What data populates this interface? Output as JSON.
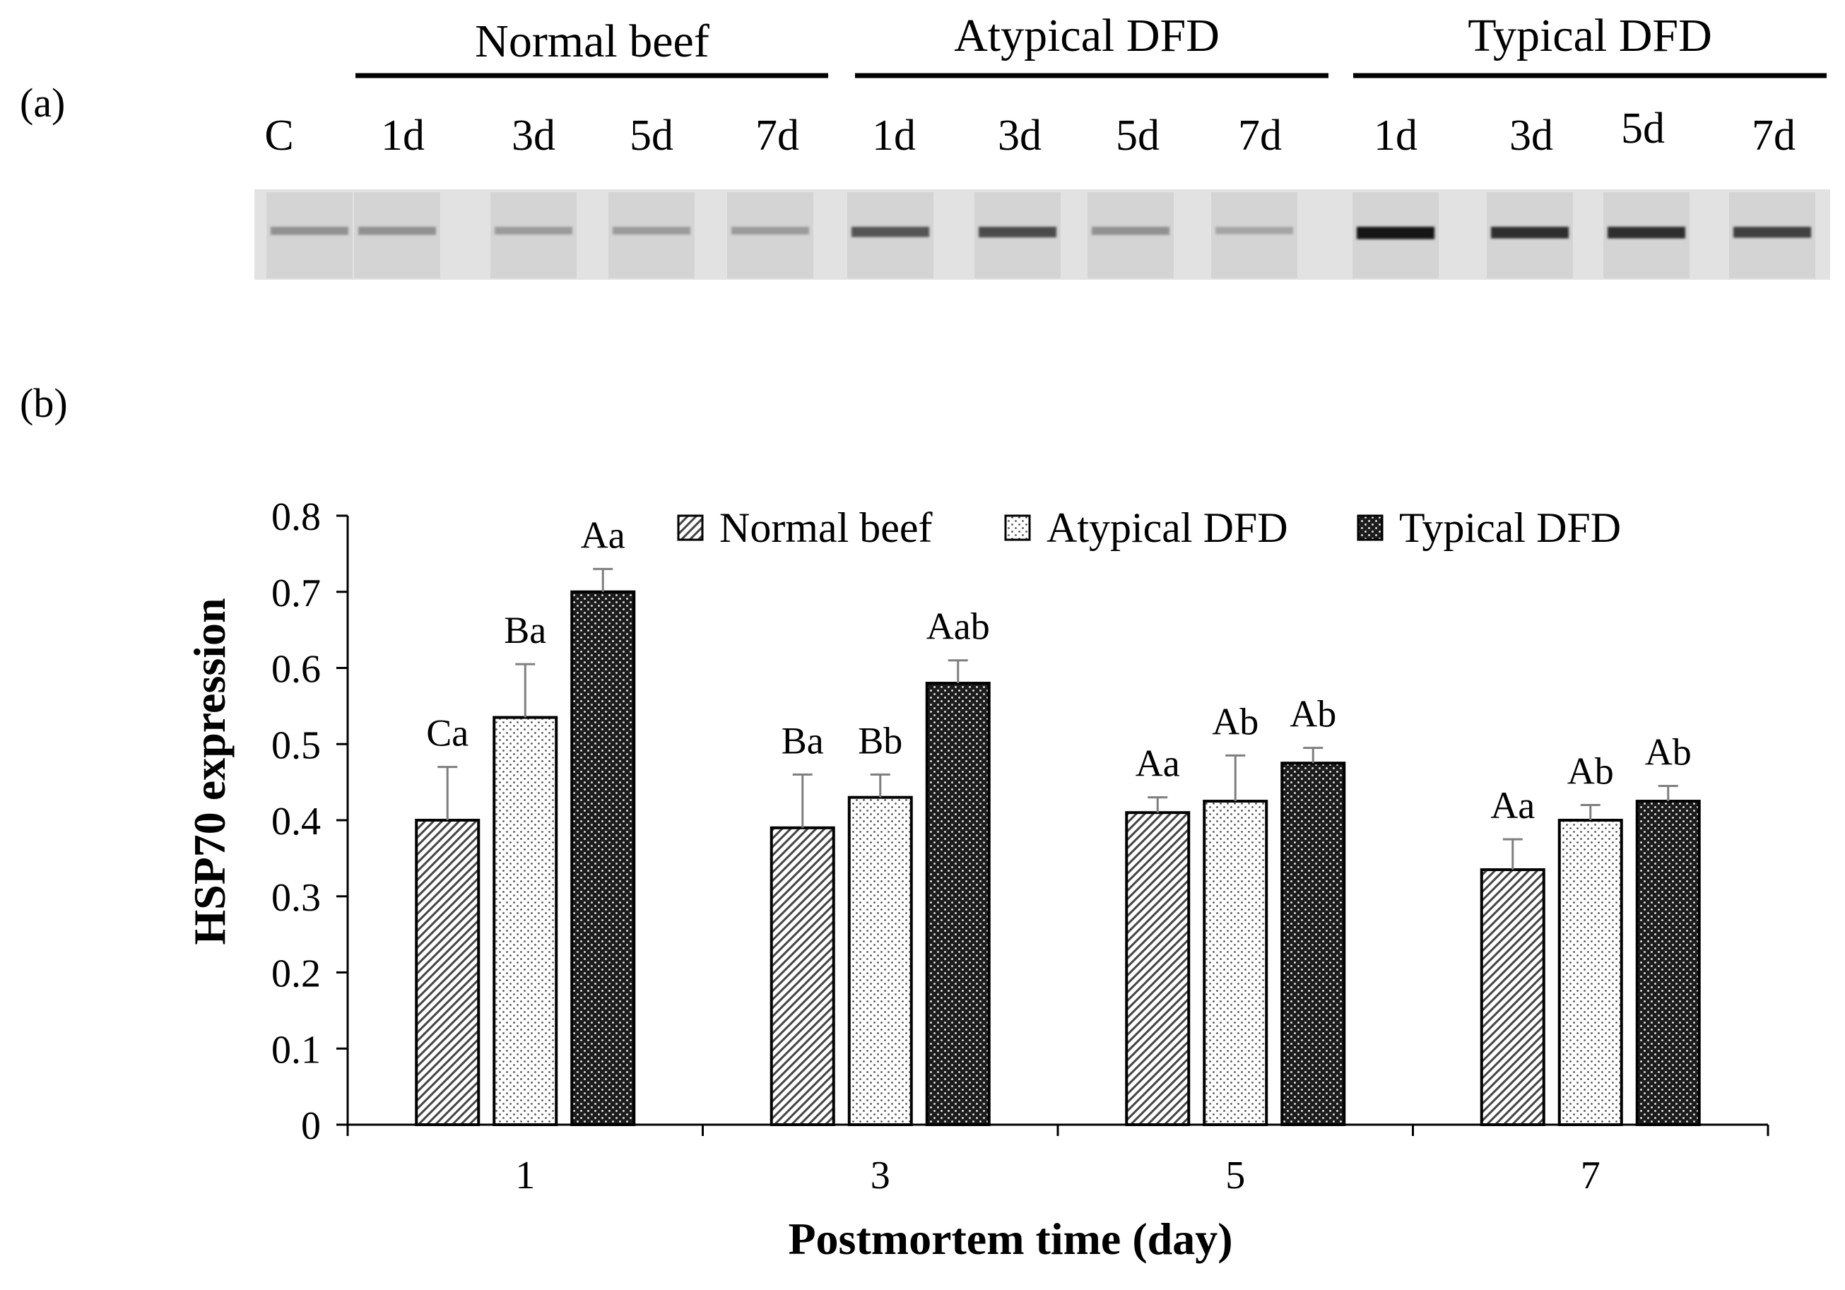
{
  "panel_labels": {
    "a": "(a)",
    "b": "(b)"
  },
  "blot": {
    "group_headers": [
      "Normal beef",
      "Atypical DFD",
      "Typical DFD"
    ],
    "lane_labels": [
      "C",
      "1d",
      "3d",
      "5d",
      "7d",
      "1d",
      "3d",
      "5d",
      "7d",
      "1d",
      "3d",
      "5d",
      "7d"
    ],
    "band_intensity": [
      0.35,
      0.35,
      0.3,
      0.3,
      0.3,
      0.65,
      0.7,
      0.35,
      0.25,
      0.95,
      0.85,
      0.85,
      0.75
    ]
  },
  "colors": {
    "text": "#000000",
    "blot_bg": "#e2e2e2",
    "lane_bg": "#d4d4d4",
    "band_dark": "#1a1a1a",
    "normal_fill": "#ffffff",
    "atypical_fill": "#ffffff",
    "typical_fill": "#1c1c1c",
    "error_bar": "#7f7f7f",
    "axis": "#000000"
  },
  "chart_data": {
    "type": "bar",
    "title": "",
    "xlabel": "Postmortem time (day)",
    "ylabel": "HSP70 expression",
    "categories": [
      "1",
      "3",
      "5",
      "7"
    ],
    "ylim": [
      0,
      0.8
    ],
    "yticks": [
      "0",
      "0.1",
      "0.2",
      "0.3",
      "0.4",
      "0.5",
      "0.6",
      "0.7",
      "0.8"
    ],
    "legend_position": "top-right",
    "series": [
      {
        "name": "Normal beef",
        "pattern": "diagonal-hatch",
        "values": [
          0.4,
          0.39,
          0.41,
          0.335
        ],
        "errors": [
          0.07,
          0.07,
          0.02,
          0.04
        ],
        "labels": [
          "Ca",
          "Ba",
          "Aa",
          "Aa"
        ]
      },
      {
        "name": "Atypical DFD",
        "pattern": "dots",
        "values": [
          0.535,
          0.43,
          0.425,
          0.4
        ],
        "errors": [
          0.07,
          0.03,
          0.06,
          0.02
        ],
        "labels": [
          "Ba",
          "Bb",
          "Ab",
          "Ab"
        ]
      },
      {
        "name": "Typical DFD",
        "pattern": "dark-dots",
        "values": [
          0.7,
          0.58,
          0.475,
          0.425
        ],
        "errors": [
          0.03,
          0.03,
          0.02,
          0.02
        ],
        "labels": [
          "Aa",
          "Aab",
          "Ab",
          "Ab"
        ]
      }
    ]
  }
}
